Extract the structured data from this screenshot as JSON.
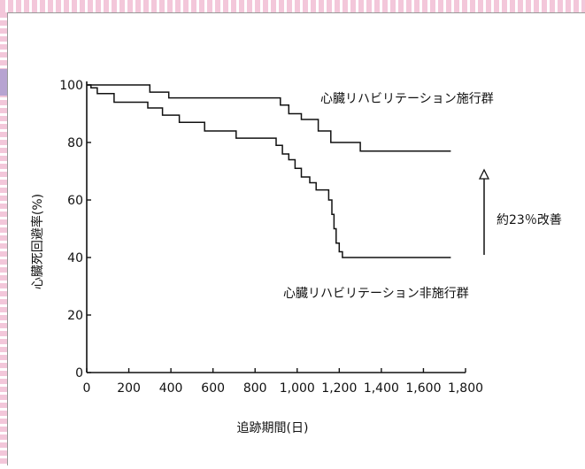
{
  "chart_data": {
    "type": "line",
    "title": "",
    "xlabel": "追跡期間(日)",
    "ylabel": "心臓死回避率(%)",
    "xlim": [
      0,
      1800
    ],
    "ylim": [
      0,
      100
    ],
    "x_ticks": [
      0,
      200,
      400,
      600,
      800,
      1000,
      1200,
      1400,
      1600,
      1800
    ],
    "x_tick_labels": [
      "0",
      "200",
      "400",
      "600",
      "800",
      "1,000",
      "1,200",
      "1,400",
      "1,600",
      "1,800"
    ],
    "y_ticks": [
      0,
      20,
      40,
      60,
      80,
      100
    ],
    "y_tick_labels": [
      "0",
      "20",
      "40",
      "60",
      "80",
      "100"
    ],
    "series": [
      {
        "name": "心臓リハビリテーション施行群",
        "points": [
          [
            0,
            100
          ],
          [
            300,
            100
          ],
          [
            300,
            97.5
          ],
          [
            390,
            97.5
          ],
          [
            390,
            95.5
          ],
          [
            920,
            95.5
          ],
          [
            920,
            93
          ],
          [
            960,
            93
          ],
          [
            960,
            90
          ],
          [
            1020,
            90
          ],
          [
            1020,
            88
          ],
          [
            1100,
            88
          ],
          [
            1100,
            84
          ],
          [
            1160,
            84
          ],
          [
            1160,
            80
          ],
          [
            1300,
            80
          ],
          [
            1300,
            77
          ],
          [
            1730,
            77
          ]
        ]
      },
      {
        "name": "心臓リハビリテーション非施行群",
        "points": [
          [
            0,
            100
          ],
          [
            20,
            100
          ],
          [
            20,
            99
          ],
          [
            50,
            99
          ],
          [
            50,
            97
          ],
          [
            130,
            97
          ],
          [
            130,
            94
          ],
          [
            290,
            94
          ],
          [
            290,
            92
          ],
          [
            360,
            92
          ],
          [
            360,
            89.5
          ],
          [
            440,
            89.5
          ],
          [
            440,
            87
          ],
          [
            560,
            87
          ],
          [
            560,
            84
          ],
          [
            710,
            84
          ],
          [
            710,
            81.5
          ],
          [
            900,
            81.5
          ],
          [
            900,
            79
          ],
          [
            930,
            79
          ],
          [
            930,
            76
          ],
          [
            960,
            76
          ],
          [
            960,
            74
          ],
          [
            990,
            74
          ],
          [
            990,
            71
          ],
          [
            1020,
            71
          ],
          [
            1020,
            68
          ],
          [
            1060,
            68
          ],
          [
            1060,
            66
          ],
          [
            1090,
            66
          ],
          [
            1090,
            63.5
          ],
          [
            1150,
            63.5
          ],
          [
            1150,
            60
          ],
          [
            1165,
            60
          ],
          [
            1165,
            55
          ],
          [
            1175,
            55
          ],
          [
            1175,
            50
          ],
          [
            1185,
            50
          ],
          [
            1185,
            45
          ],
          [
            1200,
            45
          ],
          [
            1200,
            42
          ],
          [
            1215,
            42
          ],
          [
            1215,
            40
          ],
          [
            1730,
            40
          ]
        ]
      }
    ],
    "annotations": [
      {
        "text": "心臓リハビリテーション施行群"
      },
      {
        "text": "心臓リハビリテーション非施行群"
      },
      {
        "text": "約23％改善"
      }
    ],
    "grid": false,
    "legend": "none"
  }
}
